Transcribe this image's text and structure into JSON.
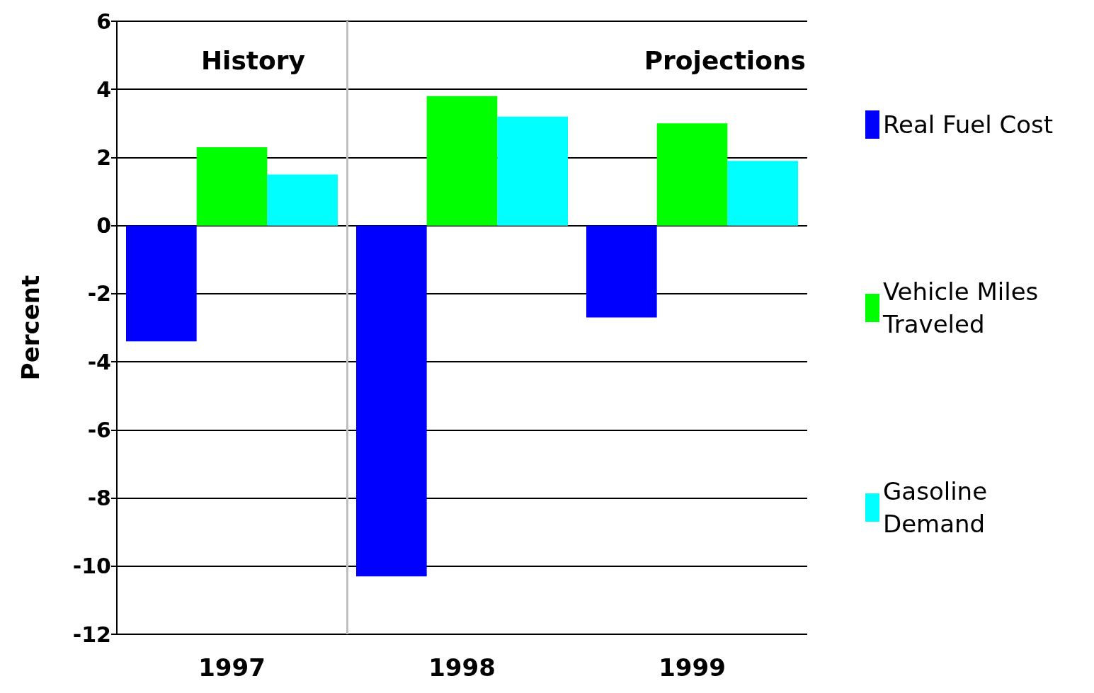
{
  "chart_data": {
    "type": "bar",
    "ylabel": "Percent",
    "categories": [
      "1997",
      "1998",
      "1999"
    ],
    "series": [
      {
        "name": "Real Fuel Cost",
        "color": "#0000ff",
        "values": [
          -3.4,
          -10.3,
          -2.7
        ]
      },
      {
        "name": "Vehicle Miles Traveled",
        "color": "#00ff00",
        "values": [
          2.3,
          3.8,
          3.0
        ]
      },
      {
        "name": "Gasoline Demand",
        "color": "#00ffff",
        "values": [
          1.5,
          3.2,
          1.9
        ]
      }
    ],
    "ylim": [
      -12,
      6
    ],
    "yticks": [
      -12,
      -10,
      -8,
      -6,
      -4,
      -2,
      0,
      2,
      4,
      6
    ],
    "grid": "y",
    "legend": "right",
    "annotations": [
      "History",
      "Projections"
    ]
  }
}
